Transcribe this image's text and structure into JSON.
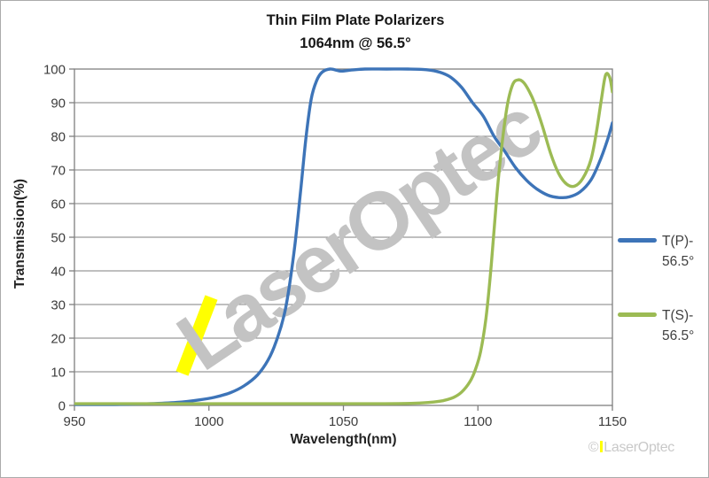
{
  "title": {
    "line1": "Thin Film Plate Polarizers",
    "line2": "1064nm @ 56.5°"
  },
  "watermark": {
    "text": "LaserOptec"
  },
  "footer": {
    "copyright": "©",
    "brand": "LaserOptec"
  },
  "colors": {
    "tp": "#3d74b8",
    "ts": "#9cbb54",
    "grid": "#7f7f7f",
    "tick_text": "#3d3d3d",
    "watermark": "#c3c3c3",
    "highlight": "#ffff00",
    "footer_text": "#c9c9c9"
  },
  "chart_data": {
    "type": "line",
    "title": "Thin Film Plate Polarizers 1064nm @ 56.5°",
    "xlabel": "Wavelength(nm)",
    "ylabel": "Transmission(%)",
    "xlim": [
      950,
      1150
    ],
    "ylim": [
      0,
      100
    ],
    "x_ticks": [
      950,
      1000,
      1050,
      1100,
      1150
    ],
    "y_ticks": [
      0,
      10,
      20,
      30,
      40,
      50,
      60,
      70,
      80,
      90,
      100
    ],
    "grid": "horizontal",
    "legend_position": "right-outside",
    "annotations": [
      {
        "type": "highlight-stroke",
        "color_key": "highlight",
        "x_nm": 985,
        "y_pct_range": [
          11,
          30
        ]
      }
    ],
    "series": [
      {
        "name": "T(P)-56.5°",
        "legend_lines": [
          "T(P)-",
          "56.5°"
        ],
        "color_key": "tp",
        "points": [
          [
            950,
            0.3
          ],
          [
            965,
            0.3
          ],
          [
            978,
            0.5
          ],
          [
            988,
            0.9
          ],
          [
            996,
            1.6
          ],
          [
            1002,
            2.4
          ],
          [
            1008,
            3.8
          ],
          [
            1013,
            5.8
          ],
          [
            1018,
            9
          ],
          [
            1022,
            13.5
          ],
          [
            1025,
            19
          ],
          [
            1028,
            27
          ],
          [
            1030,
            36
          ],
          [
            1032,
            48
          ],
          [
            1034,
            63
          ],
          [
            1036,
            79
          ],
          [
            1038,
            91
          ],
          [
            1040,
            96.5
          ],
          [
            1042,
            99
          ],
          [
            1045,
            100
          ],
          [
            1049,
            99.4
          ],
          [
            1053,
            99.7
          ],
          [
            1058,
            100
          ],
          [
            1066,
            100
          ],
          [
            1074,
            100
          ],
          [
            1081,
            99.8
          ],
          [
            1086,
            99
          ],
          [
            1090,
            97.5
          ],
          [
            1094,
            94.5
          ],
          [
            1098,
            90
          ],
          [
            1102,
            86
          ],
          [
            1106,
            80
          ],
          [
            1110,
            75.5
          ],
          [
            1114,
            70.7
          ],
          [
            1118,
            67
          ],
          [
            1122,
            64.3
          ],
          [
            1126,
            62.5
          ],
          [
            1130,
            61.8
          ],
          [
            1134,
            62
          ],
          [
            1138,
            63.5
          ],
          [
            1142,
            67
          ],
          [
            1145,
            72
          ],
          [
            1148,
            78.5
          ],
          [
            1150,
            84
          ]
        ]
      },
      {
        "name": "T(S)-56.5°",
        "legend_lines": [
          "T(S)-",
          "56.5°"
        ],
        "color_key": "ts",
        "points": [
          [
            950,
            0.5
          ],
          [
            990,
            0.5
          ],
          [
            1030,
            0.5
          ],
          [
            1060,
            0.5
          ],
          [
            1075,
            0.6
          ],
          [
            1082,
            0.9
          ],
          [
            1087,
            1.4
          ],
          [
            1091,
            2.4
          ],
          [
            1094,
            4
          ],
          [
            1097,
            7
          ],
          [
            1099,
            10.5
          ],
          [
            1101,
            16
          ],
          [
            1103,
            26
          ],
          [
            1105,
            42
          ],
          [
            1107,
            62
          ],
          [
            1109,
            78
          ],
          [
            1111,
            89.5
          ],
          [
            1113,
            95.5
          ],
          [
            1115,
            96.8
          ],
          [
            1117,
            96
          ],
          [
            1119,
            93.5
          ],
          [
            1121,
            90
          ],
          [
            1124,
            83
          ],
          [
            1127,
            75
          ],
          [
            1130,
            69
          ],
          [
            1133,
            65.8
          ],
          [
            1136,
            65.2
          ],
          [
            1139,
            67.5
          ],
          [
            1142,
            73
          ],
          [
            1144,
            81
          ],
          [
            1146,
            91.5
          ],
          [
            1147.5,
            98.3
          ],
          [
            1149,
            97.5
          ],
          [
            1150,
            93.2
          ]
        ]
      }
    ]
  }
}
